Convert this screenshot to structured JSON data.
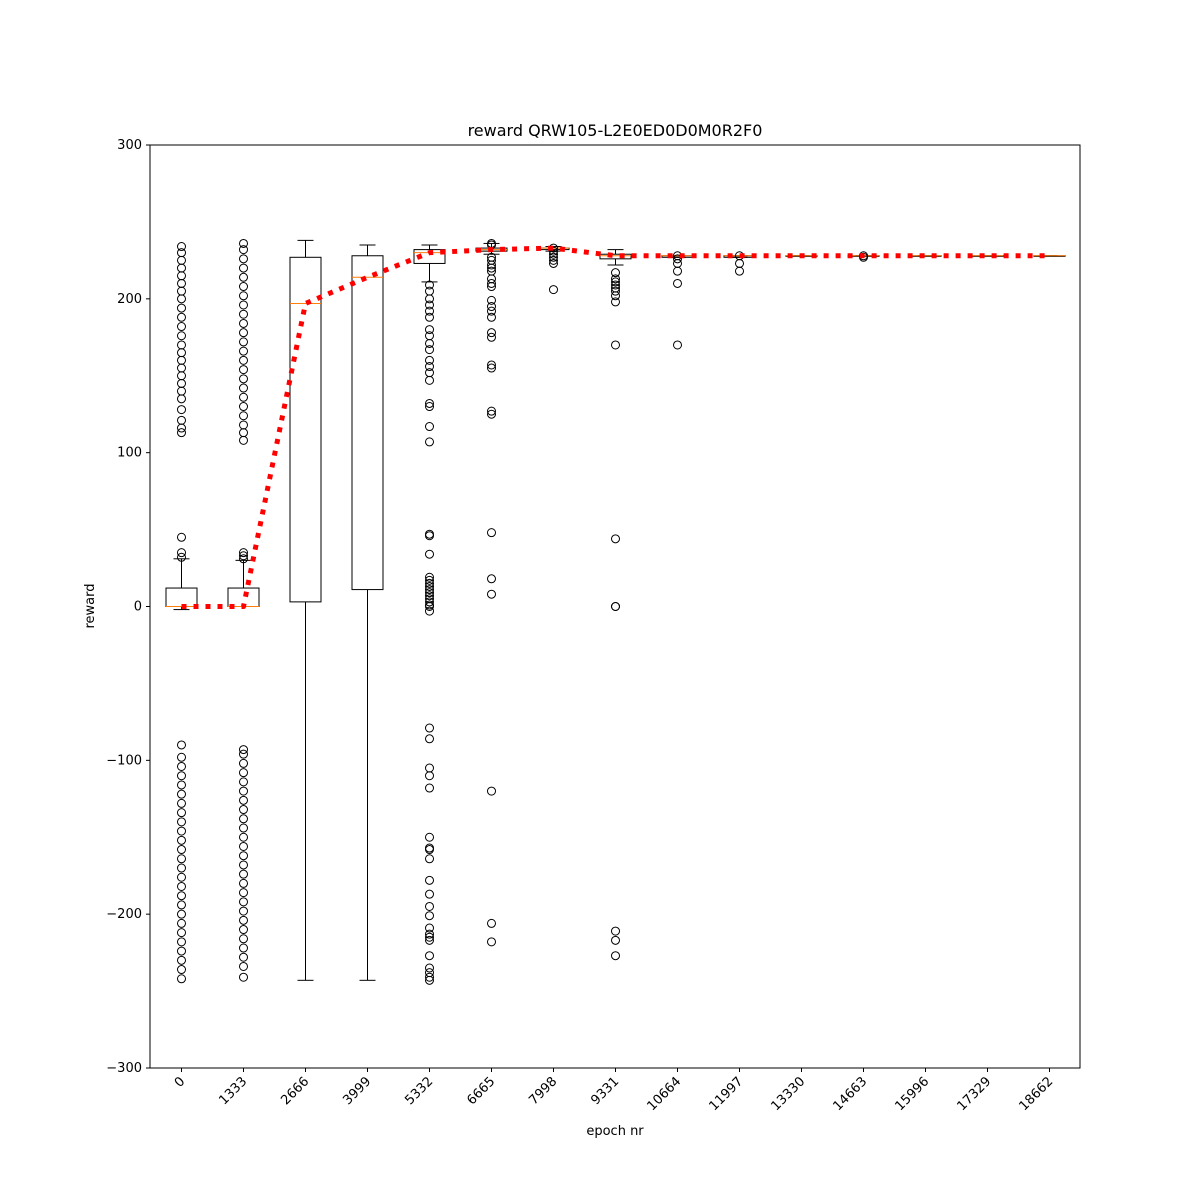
{
  "chart_data": {
    "type": "box",
    "title": "reward QRW105-L2E0ED0D0M0R2F0",
    "xlabel": "epoch nr",
    "ylabel": "reward",
    "ylim": [
      -300,
      300
    ],
    "yticks": [
      -300,
      -200,
      -100,
      0,
      100,
      200,
      300
    ],
    "ytick_labels": [
      "−300",
      "−200",
      "−100",
      "0",
      "100",
      "200",
      "300"
    ],
    "categories": [
      "0",
      "1333",
      "2666",
      "3999",
      "5332",
      "6665",
      "7998",
      "9331",
      "10664",
      "11997",
      "13330",
      "14663",
      "15996",
      "17329",
      "18662"
    ],
    "grid": false,
    "boxes": [
      {
        "q1": 0,
        "median": 0,
        "q3": 12,
        "whisker_low": -2,
        "whisker_high": 31,
        "outliers": [
          32,
          35,
          45,
          113,
          116,
          121,
          128,
          135,
          140,
          145,
          150,
          155,
          160,
          165,
          170,
          176,
          182,
          188,
          194,
          200,
          205,
          210,
          215,
          220,
          225,
          230,
          234,
          -90,
          -98,
          -104,
          -110,
          -116,
          -122,
          -128,
          -134,
          -140,
          -146,
          -152,
          -158,
          -164,
          -170,
          -176,
          -182,
          -188,
          -194,
          -200,
          -206,
          -212,
          -218,
          -224,
          -230,
          -236,
          -242
        ]
      },
      {
        "q1": 0,
        "median": 0,
        "q3": 12,
        "whisker_low": 0,
        "whisker_high": 30,
        "outliers": [
          31,
          33,
          35,
          108,
          113,
          118,
          124,
          130,
          136,
          142,
          148,
          154,
          160,
          166,
          172,
          178,
          184,
          190,
          196,
          202,
          208,
          214,
          220,
          226,
          232,
          236,
          -93,
          -96,
          -102,
          -108,
          -114,
          -120,
          -126,
          -132,
          -138,
          -144,
          -150,
          -156,
          -162,
          -168,
          -174,
          -180,
          -186,
          -192,
          -198,
          -204,
          -210,
          -216,
          -222,
          -228,
          -234,
          -241
        ]
      },
      {
        "q1": 3,
        "median": 197,
        "q3": 227,
        "whisker_low": -243,
        "whisker_high": 238,
        "outliers": []
      },
      {
        "q1": 11,
        "median": 214,
        "q3": 228,
        "whisker_low": -243,
        "whisker_high": 235,
        "outliers": []
      },
      {
        "q1": 223,
        "median": 230,
        "q3": 232,
        "whisker_low": 211,
        "whisker_high": 235,
        "outliers": [
          209,
          205,
          200,
          196,
          192,
          188,
          180,
          176,
          171,
          167,
          160,
          156,
          152,
          147,
          132,
          130,
          117,
          107,
          47,
          46,
          34,
          19,
          17,
          15,
          13,
          11,
          9,
          7,
          5,
          3,
          1,
          0,
          -3,
          -79,
          -86,
          -105,
          -110,
          -118,
          -150,
          -157,
          -158,
          -164,
          -178,
          -187,
          -195,
          -201,
          -209,
          -213,
          -215,
          -217,
          -227,
          -235,
          -238,
          -241,
          -243
        ]
      },
      {
        "q1": 231,
        "median": 232,
        "q3": 233,
        "whisker_low": 229,
        "whisker_high": 236,
        "outliers": [
          236,
          235,
          227,
          225,
          222,
          220,
          218,
          213,
          210,
          208,
          199,
          195,
          192,
          188,
          178,
          175,
          157,
          155,
          127,
          125,
          48,
          18,
          8,
          -120,
          -206,
          -218
        ]
      },
      {
        "q1": 232,
        "median": 233,
        "q3": 233,
        "whisker_low": 231,
        "whisker_high": 234,
        "outliers": [
          233,
          231,
          229,
          227,
          225,
          223,
          206
        ]
      },
      {
        "q1": 226,
        "median": 228,
        "q3": 229,
        "whisker_low": 222,
        "whisker_high": 232,
        "outliers": [
          217,
          213,
          211,
          209,
          207,
          205,
          202,
          198,
          170,
          44,
          0,
          0,
          -211,
          -217,
          -227
        ]
      },
      {
        "q1": 227,
        "median": 228,
        "q3": 228,
        "whisker_low": 227,
        "whisker_high": 228,
        "outliers": [
          228,
          226,
          223,
          218,
          210,
          170
        ]
      },
      {
        "q1": 227,
        "median": 228,
        "q3": 228,
        "whisker_low": 227,
        "whisker_high": 228,
        "outliers": [
          228,
          223,
          218
        ]
      },
      {
        "q1": 228,
        "median": 228,
        "q3": 228,
        "whisker_low": 228,
        "whisker_high": 228,
        "outliers": []
      },
      {
        "q1": 228,
        "median": 228,
        "q3": 228,
        "whisker_low": 228,
        "whisker_high": 228,
        "outliers": [
          228,
          227
        ]
      },
      {
        "q1": 228,
        "median": 228,
        "q3": 228,
        "whisker_low": 228,
        "whisker_high": 228,
        "outliers": []
      },
      {
        "q1": 228,
        "median": 228,
        "q3": 228,
        "whisker_low": 228,
        "whisker_high": 228,
        "outliers": []
      },
      {
        "q1": 228,
        "median": 228,
        "q3": 228,
        "whisker_low": 228,
        "whisker_high": 228,
        "outliers": []
      }
    ],
    "mean_line": {
      "style": "dotted",
      "color": "#ff0000",
      "values": [
        0,
        0,
        197,
        214,
        230,
        232,
        233,
        228,
        228,
        228,
        228,
        228,
        228,
        228,
        228
      ]
    },
    "colors": {
      "box": "#000000",
      "median": "#ff7f0e",
      "outlier": "#000000",
      "mean_line": "#ff0000"
    }
  }
}
